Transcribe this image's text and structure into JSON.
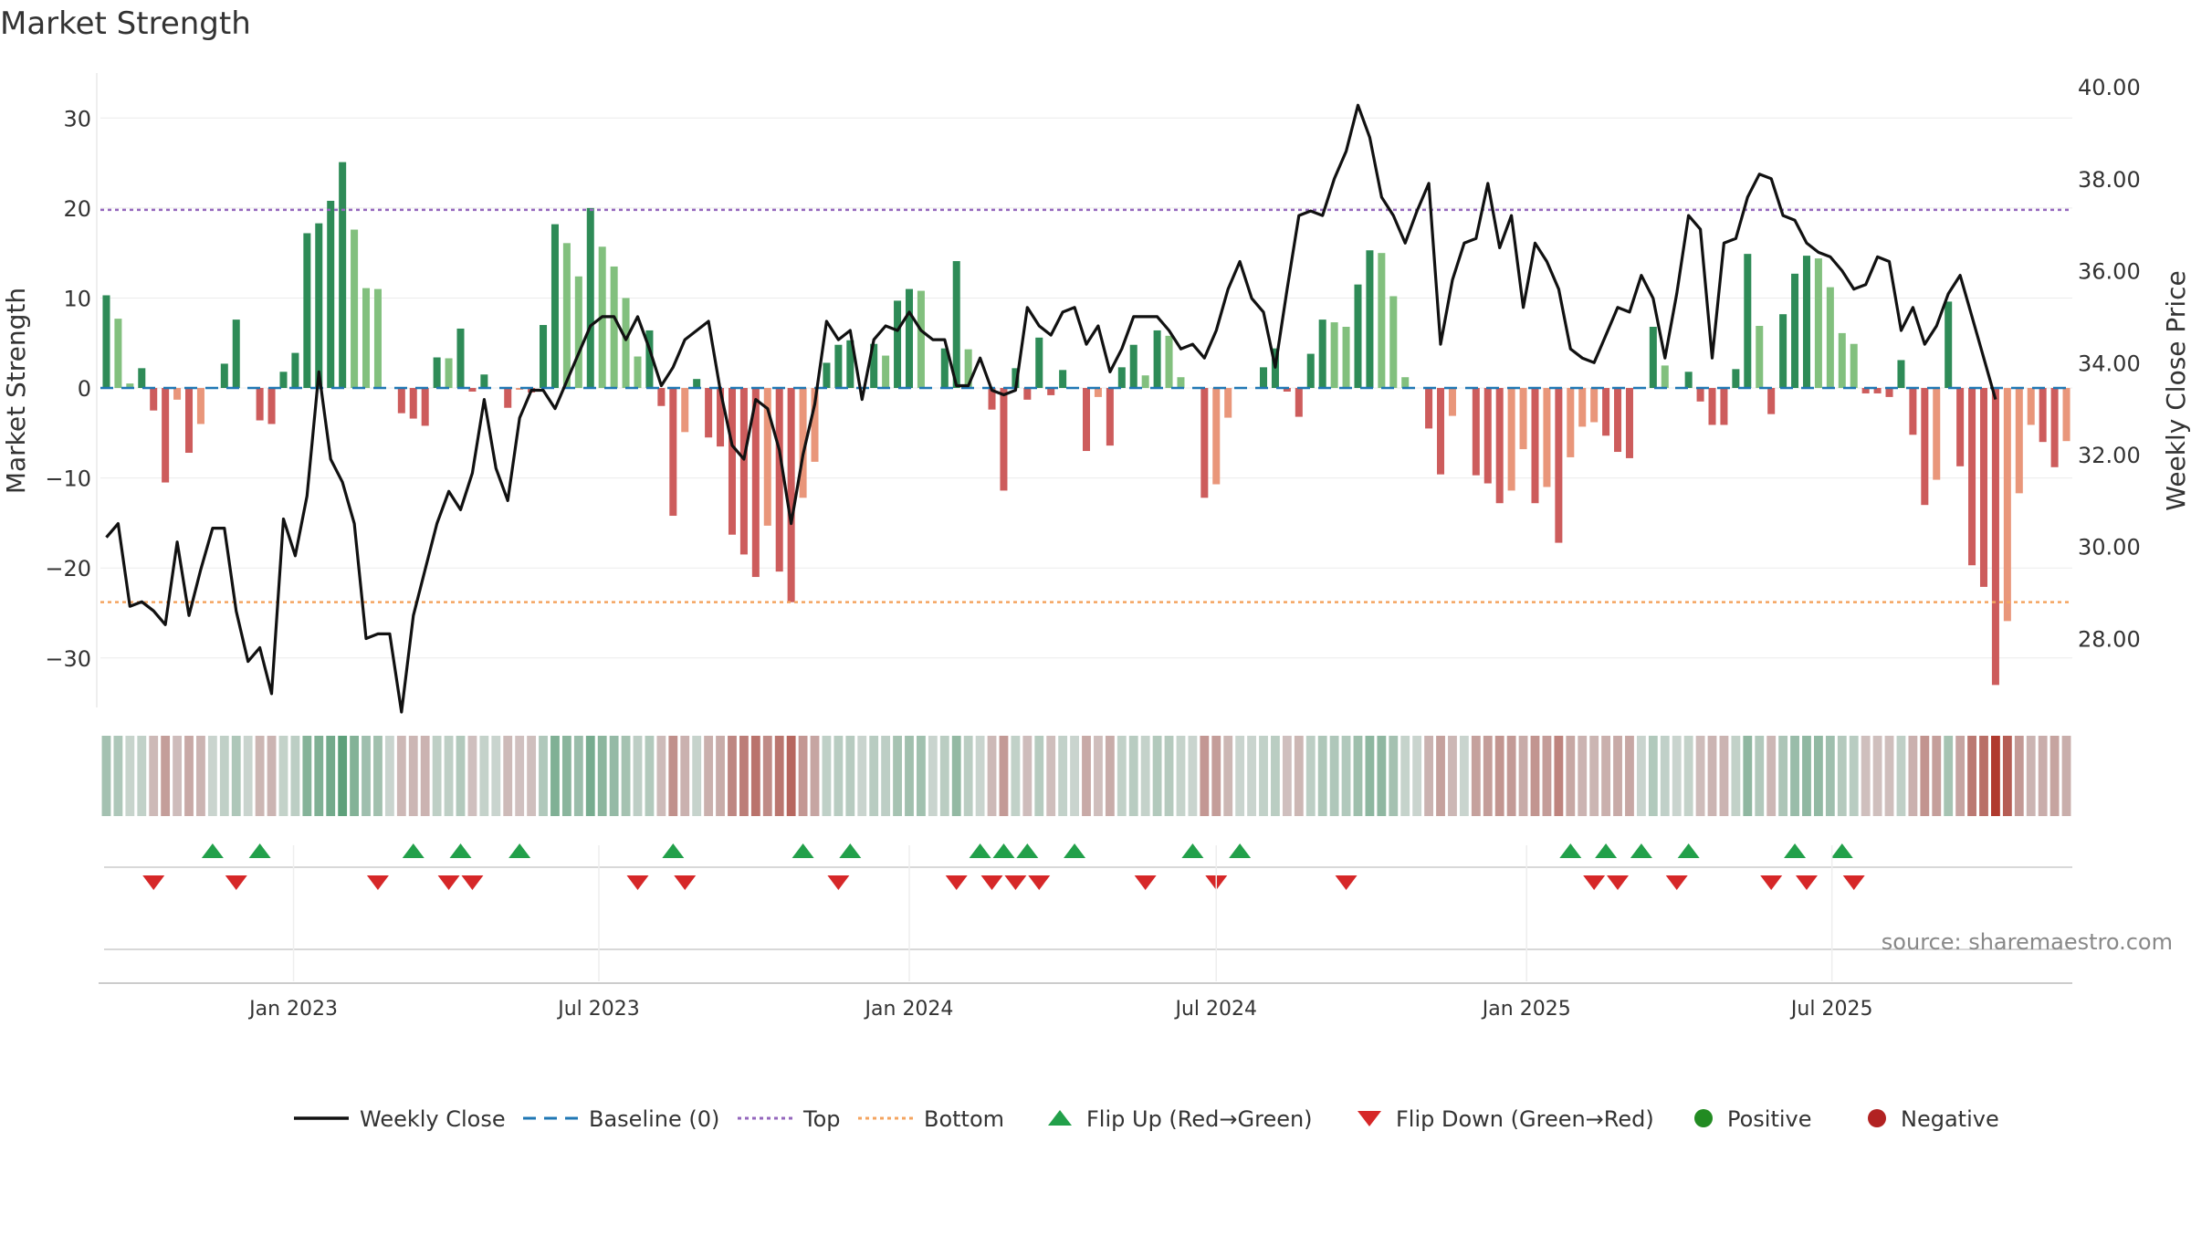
{
  "title": "Market Strength",
  "source": "source: sharemaestro.com",
  "colors": {
    "green_dark": "#2e8b57",
    "green_light": "#82c07e",
    "red_dark": "#cd5c5c",
    "red_light": "#e9967a",
    "close_line": "#111111",
    "baseline": "#1f77b4",
    "top": "#9467bd",
    "bottom": "#f4a460",
    "flip_up": "#22a04a",
    "flip_down": "#d62728",
    "positive": "#228b22",
    "negative": "#b22222"
  },
  "chart_data": {
    "type": "bar",
    "title": "Market Strength",
    "ylabel_left": "Market Strength",
    "ylabel_right": "Weekly Close Price",
    "ylim_left": [
      -35.5,
      35
    ],
    "ylim_right": [
      26.5,
      40.3
    ],
    "yticks_left": [
      -30,
      -20,
      -10,
      0,
      10,
      20,
      30
    ],
    "ytick_labels_left": [
      "−30",
      "−20",
      "−10",
      "0",
      "10",
      "20",
      "30"
    ],
    "yticks_right": [
      28,
      30,
      32,
      34,
      36,
      38,
      40
    ],
    "ytick_labels_right": [
      "28.00",
      "30.00",
      "32.00",
      "34.00",
      "36.00",
      "38.00",
      "40.00"
    ],
    "top_line": 19.8,
    "bottom_line": -23.8,
    "x_start": "2022-09-12",
    "week_days": 7,
    "xticks": [
      {
        "date": "2023-01-01",
        "label": "Jan 2023"
      },
      {
        "date": "2023-07-01",
        "label": "Jul 2023"
      },
      {
        "date": "2024-01-01",
        "label": "Jan 2024"
      },
      {
        "date": "2024-07-01",
        "label": "Jul 2024"
      },
      {
        "date": "2025-01-01",
        "label": "Jan 2025"
      },
      {
        "date": "2025-07-01",
        "label": "Jul 2025"
      }
    ],
    "legend": [
      "Weekly Close",
      "Baseline (0)",
      "Top",
      "Bottom",
      "Flip Up (Red→Green)",
      "Flip Down (Green→Red)",
      "Positive",
      "Negative"
    ],
    "strength": [
      10.3,
      7.7,
      0.5,
      2.2,
      -2.5,
      -10.5,
      -1.3,
      -7.2,
      -4.0,
      0,
      2.7,
      7.6,
      0,
      -3.6,
      -4.0,
      1.8,
      3.9,
      17.2,
      18.3,
      20.8,
      25.1,
      17.6,
      11.1,
      11.0,
      0,
      -2.8,
      -3.4,
      -4.2,
      3.4,
      3.3,
      6.6,
      -0.4,
      1.5,
      0,
      -2.2,
      -0.2,
      -0.5,
      7.0,
      18.2,
      16.1,
      12.4,
      20.0,
      15.7,
      13.5,
      10.0,
      3.5,
      6.4,
      -2.0,
      -14.2,
      -4.9,
      1.0,
      -5.5,
      -6.5,
      -16.3,
      -18.5,
      -21.0,
      -15.3,
      -20.4,
      -23.8,
      -12.2,
      -8.2,
      2.8,
      4.8,
      5.3,
      0,
      4.9,
      3.6,
      9.7,
      11.0,
      10.8,
      0,
      4.4,
      14.1,
      4.3,
      0,
      -2.4,
      -11.4,
      2.2,
      -1.3,
      5.6,
      -0.8,
      2.0,
      0,
      -7.0,
      -1.0,
      -6.4,
      2.3,
      4.8,
      1.4,
      6.4,
      5.8,
      1.2,
      0,
      -12.2,
      -10.7,
      -3.3,
      0,
      0,
      2.3,
      4.4,
      -0.4,
      -3.2,
      3.8,
      7.6,
      7.3,
      6.8,
      11.5,
      15.3,
      15.0,
      10.2,
      1.2,
      0,
      -4.5,
      -9.6,
      -3.1,
      0,
      -9.7,
      -10.6,
      -12.8,
      -11.4,
      -6.8,
      -12.8,
      -11.0,
      -17.2,
      -7.7,
      -4.3,
      -3.8,
      -5.3,
      -7.1,
      -7.8,
      0,
      6.8,
      2.5,
      0,
      1.8,
      -1.5,
      -4.1,
      -4.1,
      2.1,
      14.9,
      6.9,
      -2.9,
      8.2,
      12.7,
      14.7,
      14.4,
      11.2,
      6.1,
      4.9,
      -0.6,
      -0.6,
      -1.0,
      3.1,
      -5.2,
      -13.0,
      -10.2,
      9.6,
      -8.7,
      -19.7,
      -22.1,
      -33.0,
      -25.9,
      -11.7,
      -4.1,
      -6.0,
      -8.8,
      -5.9
    ],
    "close": [
      30.2,
      30.5,
      28.7,
      28.8,
      28.6,
      28.3,
      30.1,
      28.5,
      29.5,
      30.4,
      30.4,
      28.6,
      27.5,
      27.8,
      26.8,
      30.6,
      29.8,
      31.1,
      33.8,
      31.9,
      31.4,
      30.5,
      28.0,
      28.1,
      28.1,
      26.4,
      28.5,
      29.5,
      30.5,
      31.2,
      30.8,
      31.6,
      33.2,
      31.7,
      31.0,
      32.8,
      33.4,
      33.4,
      33.0,
      33.6,
      34.2,
      34.8,
      35.0,
      35.0,
      34.5,
      35.0,
      34.3,
      33.5,
      33.9,
      34.5,
      34.7,
      34.9,
      33.4,
      32.2,
      31.9,
      33.2,
      33.0,
      32.1,
      30.5,
      32.0,
      33.1,
      34.9,
      34.5,
      34.7,
      33.2,
      34.5,
      34.8,
      34.7,
      35.1,
      34.7,
      34.5,
      34.5,
      33.5,
      33.5,
      34.1,
      33.4,
      33.3,
      33.4,
      35.2,
      34.8,
      34.6,
      35.1,
      35.2,
      34.4,
      34.8,
      33.8,
      34.3,
      35.0,
      35.0,
      35.0,
      34.7,
      34.3,
      34.4,
      34.1,
      34.7,
      35.6,
      36.2,
      35.4,
      35.1,
      33.9,
      35.6,
      37.2,
      37.3,
      37.2,
      38.0,
      38.6,
      39.6,
      38.9,
      37.6,
      37.2,
      36.6,
      37.3,
      37.9,
      34.4,
      35.8,
      36.6,
      36.7,
      37.9,
      36.5,
      37.2,
      35.2,
      36.6,
      36.2,
      35.6,
      34.3,
      34.1,
      34.0,
      34.6,
      35.2,
      35.1,
      35.9,
      35.4,
      34.1,
      35.5,
      37.2,
      36.9,
      34.1,
      36.6,
      36.7,
      37.6,
      38.1,
      38.0,
      37.2,
      37.1,
      36.6,
      36.4,
      36.3,
      36.0,
      35.6,
      35.7,
      36.3,
      36.2,
      34.7,
      35.2,
      34.4,
      34.8,
      35.5,
      35.9,
      35.0,
      34.1,
      33.2
    ]
  },
  "markers": {
    "flip_up_weeks": [
      9,
      13,
      26,
      30,
      35,
      48,
      59,
      63,
      74,
      76,
      78,
      82,
      92,
      96,
      124,
      127,
      130,
      134,
      143,
      147
    ],
    "flip_down_weeks": [
      4,
      11,
      23,
      29,
      31,
      45,
      49,
      62,
      72,
      75,
      77,
      79,
      88,
      94,
      105,
      126,
      128,
      133,
      141,
      144,
      148
    ]
  }
}
